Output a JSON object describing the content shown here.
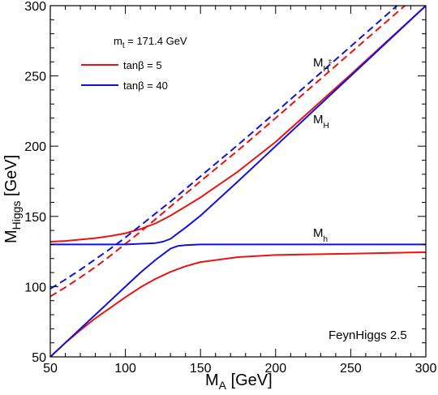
{
  "chart_data": {
    "type": "line",
    "xlabel_main": "M",
    "xlabel_sub": "A",
    "xlabel_unit": " [GeV]",
    "ylabel_main": "M",
    "ylabel_sub": "Higgs",
    "ylabel_unit": " [GeV]",
    "xlim": [
      50,
      300
    ],
    "ylim": [
      50,
      300
    ],
    "x_ticks": [
      50,
      100,
      150,
      200,
      250,
      300
    ],
    "y_ticks": [
      50,
      100,
      150,
      200,
      250,
      300
    ],
    "grid": false,
    "legend_header": {
      "main": "m",
      "sub": "t",
      "rest": " = 171.4 GeV"
    },
    "legend": [
      {
        "label": "tanβ = 5",
        "color": "#ee1111"
      },
      {
        "label": "tanβ = 40",
        "color": "#1111dd"
      }
    ],
    "annotations": {
      "mhpm": {
        "main": "M",
        "sub": "H",
        "sup": "±"
      },
      "mH": {
        "main": "M",
        "sub": "H"
      },
      "mh": {
        "main": "M",
        "sub": "h"
      },
      "program": "FeynHiggs 2.5"
    },
    "series": [
      {
        "tanb": 5,
        "quantity": "Mh",
        "color": "#ee1111",
        "dash": false,
        "x": [
          50,
          60,
          70,
          80,
          90,
          100,
          110,
          120,
          130,
          140,
          150,
          175,
          200,
          250,
          300
        ],
        "y": [
          50,
          60,
          69,
          77.5,
          85,
          92.5,
          99.5,
          105.5,
          110.5,
          114.5,
          117.5,
          121,
          122.5,
          123.5,
          124.5
        ]
      },
      {
        "tanb": 5,
        "quantity": "MH",
        "color": "#ee1111",
        "dash": false,
        "x": [
          50,
          60,
          70,
          80,
          90,
          100,
          110,
          120,
          130,
          140,
          150,
          175,
          200,
          250,
          300
        ],
        "y": [
          132,
          132.5,
          133.5,
          134.5,
          136,
          138,
          141,
          145,
          150.5,
          157,
          163.5,
          182,
          203,
          251,
          300
        ]
      },
      {
        "tanb": 5,
        "quantity": "MHpm",
        "color": "#ee1111",
        "dash": true,
        "x": [
          50,
          60,
          70,
          80,
          90,
          100,
          110,
          120,
          130,
          150,
          175,
          200,
          250,
          300
        ],
        "y": [
          93,
          99.5,
          106.5,
          114,
          122,
          130.5,
          139,
          148,
          157,
          175,
          197,
          220,
          266.5,
          313
        ]
      },
      {
        "tanb": 40,
        "quantity": "Mh",
        "color": "#1111dd",
        "dash": false,
        "x": [
          50,
          60,
          70,
          80,
          90,
          100,
          110,
          120,
          125,
          130,
          135,
          140,
          150,
          200,
          300
        ],
        "y": [
          50,
          60,
          70,
          80,
          90,
          100,
          110,
          119,
          123,
          127,
          129,
          129.5,
          130,
          130,
          130
        ]
      },
      {
        "tanb": 40,
        "quantity": "MH",
        "color": "#1111dd",
        "dash": false,
        "x": [
          50,
          100,
          120,
          125,
          130,
          135,
          140,
          150,
          175,
          200,
          250,
          300
        ],
        "y": [
          130,
          130,
          131,
          132,
          134,
          138,
          142,
          150.5,
          175,
          200,
          250,
          300
        ]
      },
      {
        "tanb": 40,
        "quantity": "MHpm",
        "color": "#1111dd",
        "dash": true,
        "x": [
          50,
          60,
          70,
          80,
          90,
          100,
          110,
          120,
          130,
          150,
          175,
          200,
          250,
          300
        ],
        "y": [
          98.5,
          105,
          112,
          119.5,
          127,
          135,
          143.5,
          152,
          160.5,
          178.5,
          201,
          224,
          271,
          318
        ]
      }
    ]
  }
}
